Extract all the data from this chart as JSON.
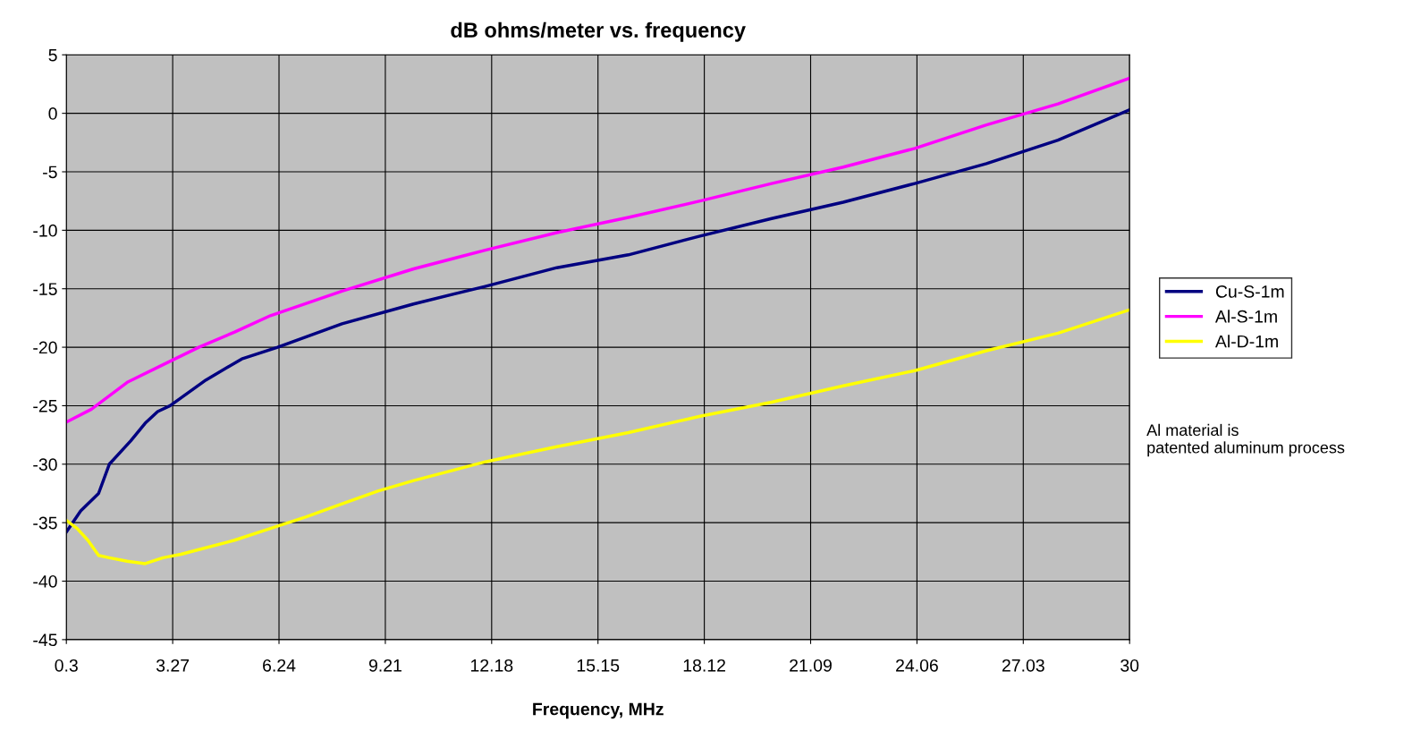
{
  "chart_data": {
    "type": "line",
    "title": "dB ohms/meter vs. frequency",
    "xlabel": "Frequency, MHz",
    "x": [
      0.3,
      0.7,
      1.2,
      1.5,
      2.1,
      2.5,
      2.85,
      3.2,
      4.2,
      5.2,
      6.2,
      8,
      10,
      12,
      14,
      16,
      18,
      20,
      22,
      24,
      26,
      28,
      30
    ],
    "series": [
      {
        "name": "Cu-S-1m",
        "color": "#000080",
        "values": [
          -35.8,
          -34,
          -32.5,
          -30,
          -28,
          -26.5,
          -25.5,
          -25,
          -22.8,
          -21,
          -20,
          -18,
          -16.3,
          -14.8,
          -13.2,
          -12.1,
          -10.5,
          -9,
          -7.6,
          -6,
          -4.3,
          -2.3,
          0.3
        ]
      },
      {
        "name": "Al-S-1m",
        "color": "#ff00ff",
        "x": [
          0.3,
          1,
          2,
          3,
          4,
          5,
          6,
          8,
          10,
          12,
          14,
          16,
          18,
          20,
          22,
          24,
          26,
          27,
          28,
          30
        ],
        "values": [
          -26.4,
          -25.3,
          -23,
          -21.5,
          -20,
          -18.7,
          -17.3,
          -15.2,
          -13.3,
          -11.7,
          -10.2,
          -8.9,
          -7.5,
          -6,
          -4.6,
          -3,
          -1,
          -0.1,
          0.8,
          3
        ]
      },
      {
        "name": "Al-D-1m",
        "color": "#ffff00",
        "x": [
          0.3,
          0.6,
          0.9,
          1.2,
          1.5,
          2,
          2.5,
          3,
          3.5,
          4,
          5,
          6,
          7,
          8,
          9,
          10,
          12,
          14,
          16,
          18,
          20,
          22,
          24,
          26,
          28,
          30
        ],
        "values": [
          -34.8,
          -35.5,
          -36.5,
          -37.8,
          -38,
          -38.3,
          -38.5,
          -38,
          -37.7,
          -37.3,
          -36.5,
          -35.5,
          -34.5,
          -33.4,
          -32.3,
          -31.4,
          -29.8,
          -28.5,
          -27.3,
          -25.9,
          -24.7,
          -23.3,
          -22,
          -20.3,
          -18.8,
          -16.8
        ]
      }
    ],
    "xlim": [
      0.3,
      30
    ],
    "xticks": [
      0.3,
      3.27,
      6.24,
      9.21,
      12.18,
      15.15,
      18.12,
      21.09,
      24.06,
      27.03,
      30
    ],
    "ylim": [
      -45,
      5
    ],
    "yticks": [
      -45,
      -40,
      -35,
      -30,
      -25,
      -20,
      -15,
      -10,
      -5,
      0,
      5
    ],
    "grid": true,
    "legend": "right",
    "marker": "none",
    "line_style": "solid",
    "annotations": [
      "Al material is\npatented aluminum process"
    ]
  }
}
